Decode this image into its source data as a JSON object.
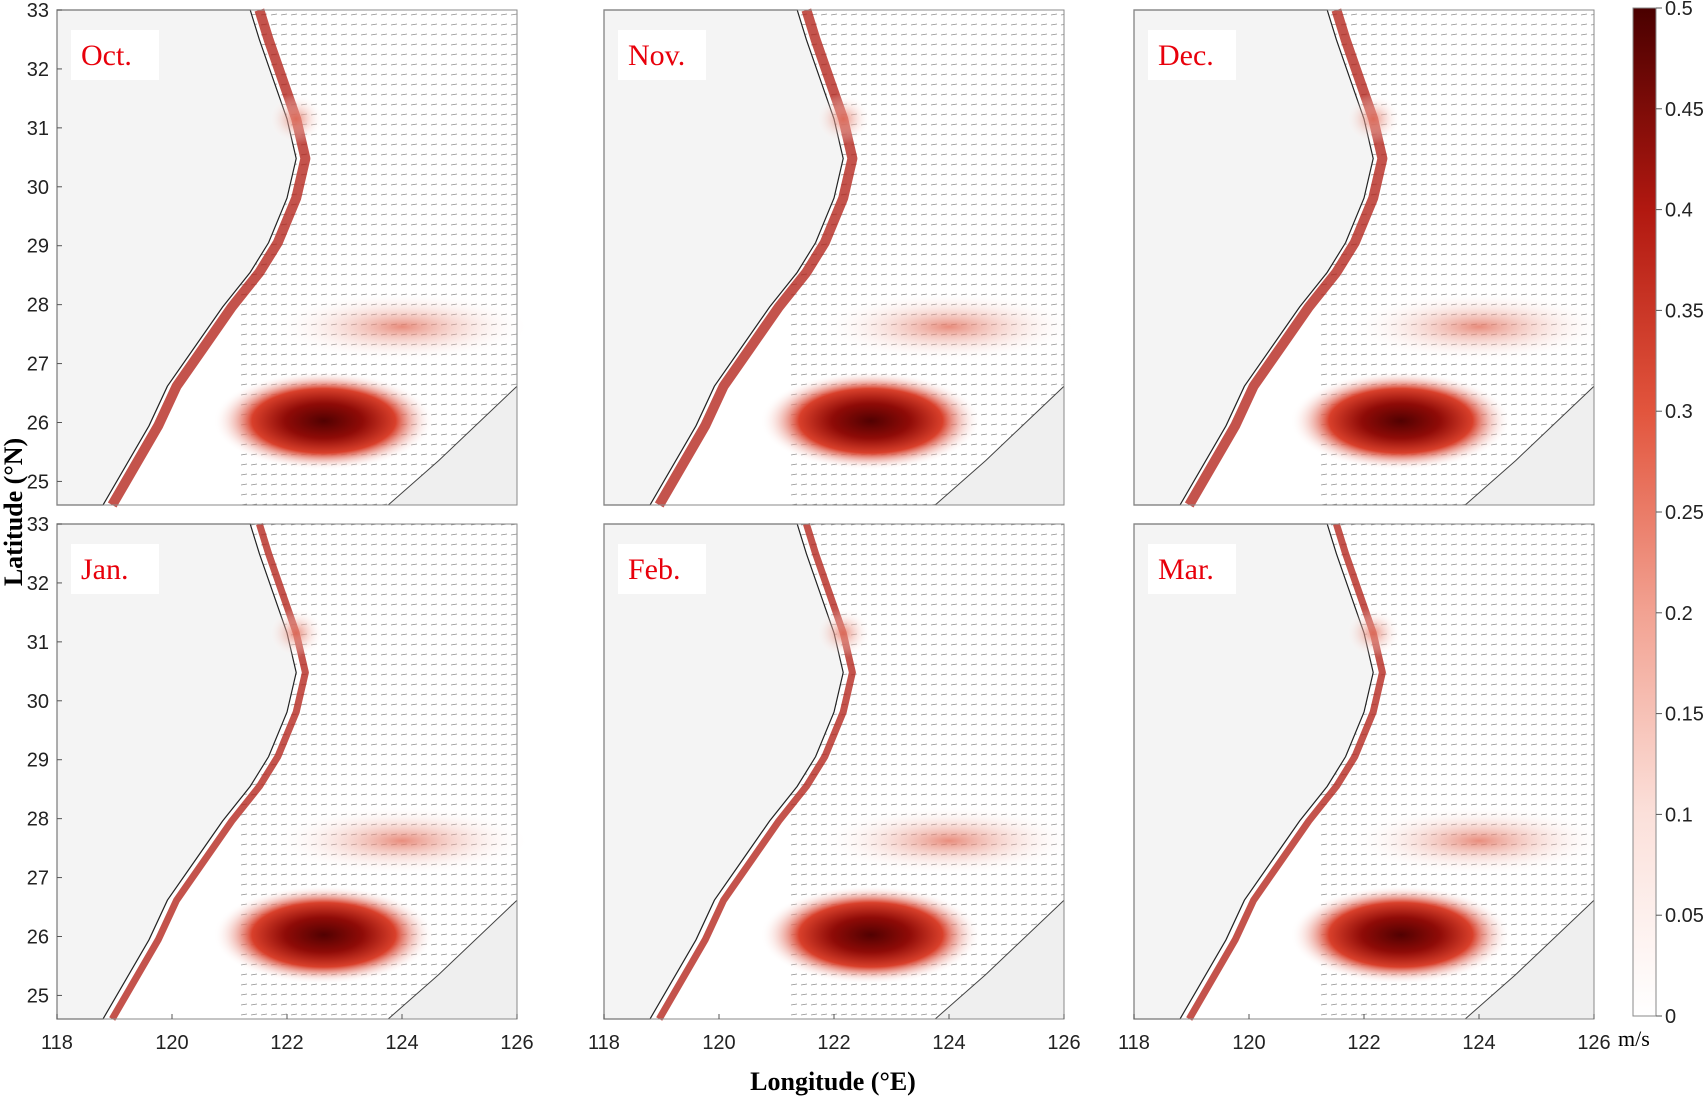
{
  "figure": {
    "panels": [
      {
        "label": "Oct."
      },
      {
        "label": "Nov."
      },
      {
        "label": "Dec."
      },
      {
        "label": "Jan."
      },
      {
        "label": "Feb."
      },
      {
        "label": "Mar."
      }
    ],
    "xlabel": "Longitude (°E)",
    "ylabel": "Latitude (°N)",
    "x_ticks": [
      "118",
      "120",
      "122",
      "124",
      "126"
    ],
    "y_ticks": [
      "33",
      "32",
      "31",
      "30",
      "29",
      "28",
      "27",
      "26",
      "25"
    ],
    "xlim": [
      118,
      126
    ],
    "ylim": [
      24.6,
      33
    ],
    "colorbar": {
      "ticks": [
        "0.5",
        "0.45",
        "0.4",
        "0.35",
        "0.3",
        "0.25",
        "0.2",
        "0.15",
        "0.1",
        "0.05",
        "0"
      ],
      "range": [
        0,
        0.5
      ],
      "unit": "m/s",
      "colors": [
        "#ffffff",
        "#fbe3df",
        "#f6c2b8",
        "#f09a89",
        "#e86a54",
        "#db3f2a",
        "#c41f14",
        "#a1100b",
        "#7a0605",
        "#520101"
      ]
    },
    "colors": {
      "label_red": "#e8000b",
      "land": "#f4f4f4",
      "coast": "#222222"
    }
  }
}
